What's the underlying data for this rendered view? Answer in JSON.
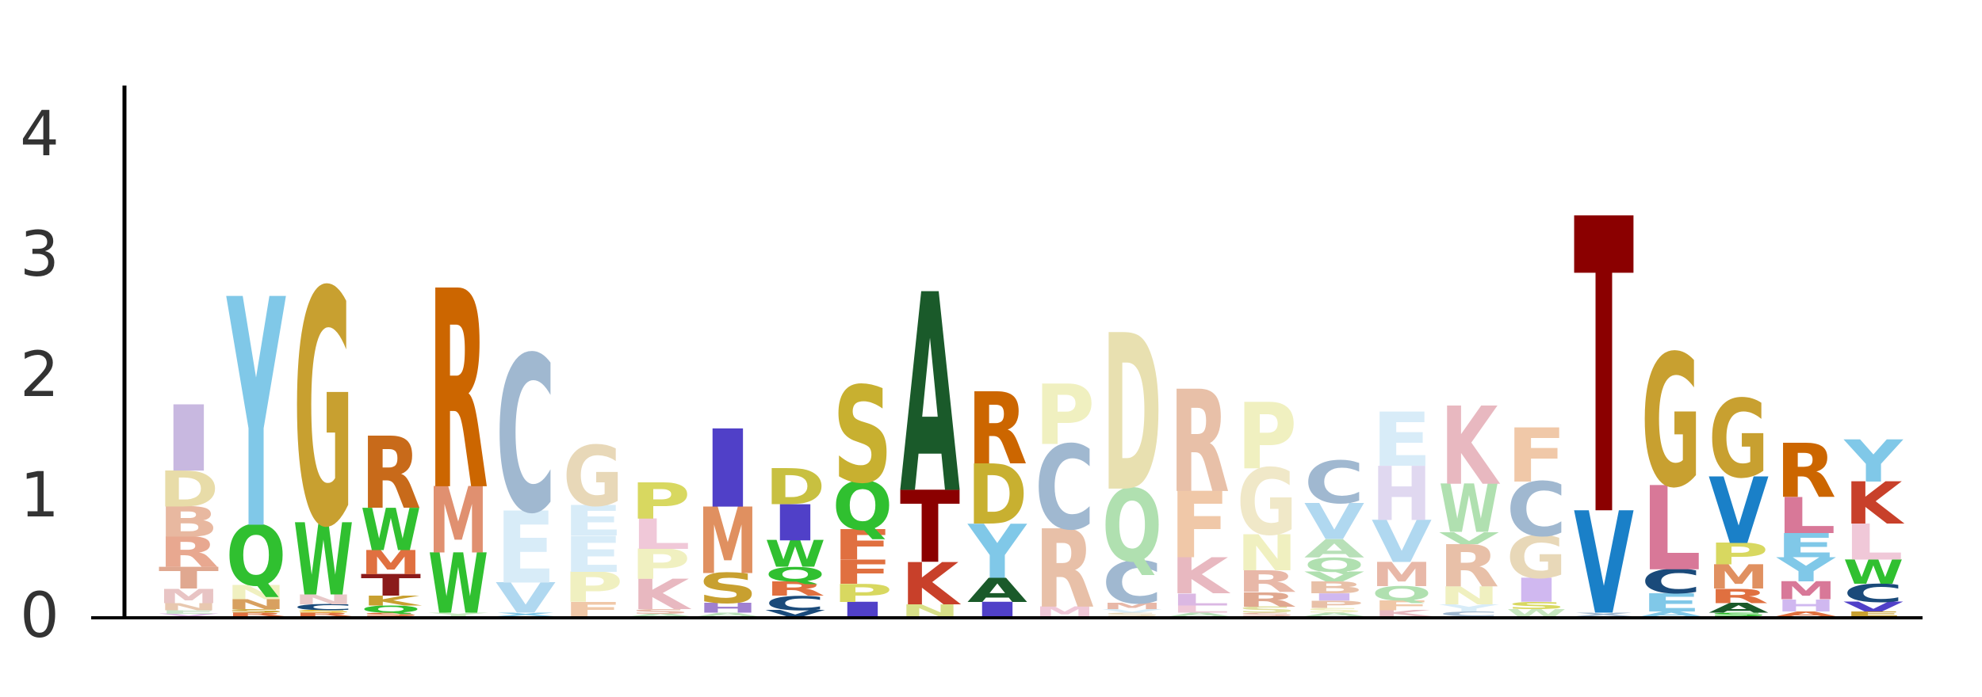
{
  "chart_data": {
    "type": "sequence-logo",
    "ylim": [
      0,
      4.3
    ],
    "yticks": [
      "0",
      "1",
      "2",
      "3",
      "4"
    ],
    "ytick_values": [
      0,
      1,
      2,
      3,
      4
    ],
    "xlabel": "",
    "ylabel": "",
    "title": "",
    "positions": [
      {
        "stack": [
          [
            "V",
            0.02,
            "#dbb8e3"
          ],
          [
            "E",
            0.03,
            "#c8e6c9"
          ],
          [
            "N",
            0.06,
            "#e8c8b0"
          ],
          [
            "M",
            0.12,
            "#e8c4c4"
          ],
          [
            "T",
            0.18,
            "#e0a890"
          ],
          [
            "R",
            0.25,
            "#e8a890"
          ],
          [
            "B",
            0.25,
            "#e8b8a0"
          ],
          [
            "D",
            0.3,
            "#e8dca8"
          ],
          [
            "I",
            0.55,
            "#c8b8e0"
          ]
        ]
      },
      {
        "stack": [
          [
            "R",
            0.03,
            "#e07040"
          ],
          [
            "S",
            0.03,
            "#c8a030"
          ],
          [
            "N",
            0.08,
            "#d8a060"
          ],
          [
            "N",
            0.12,
            "#f0f0c0"
          ],
          [
            "Q",
            0.5,
            "#30c030"
          ],
          [
            "Y",
            1.9,
            "#80c8e8"
          ]
        ]
      },
      {
        "stack": [
          [
            "R",
            0.03,
            "#e07040"
          ],
          [
            "S",
            0.02,
            "#e8c030"
          ],
          [
            "C",
            0.05,
            "#1a4a7a"
          ],
          [
            "N",
            0.08,
            "#e8c8c8"
          ],
          [
            "W",
            0.6,
            "#30c030"
          ],
          [
            "G",
            1.95,
            "#c8a030"
          ]
        ]
      },
      {
        "stack": [
          [
            "S",
            0.03,
            "#e07040"
          ],
          [
            "Q",
            0.06,
            "#30c030"
          ],
          [
            "K",
            0.08,
            "#c8a030"
          ],
          [
            "T",
            0.18,
            "#8b1a1a"
          ],
          [
            "M",
            0.2,
            "#e07040"
          ],
          [
            "W",
            0.35,
            "#30c030"
          ],
          [
            "R",
            0.6,
            "#c86a1a"
          ]
        ]
      },
      {
        "stack": [
          [
            "Y",
            0.03,
            "#c8e8c0"
          ],
          [
            "W",
            0.5,
            "#30c030"
          ],
          [
            "M",
            0.55,
            "#e09070"
          ],
          [
            "R",
            1.65,
            "#cc6600"
          ]
        ]
      },
      {
        "stack": [
          [
            "X",
            0.03,
            "#80c8e8"
          ],
          [
            "V",
            0.25,
            "#b0d8f0"
          ],
          [
            "E",
            0.6,
            "#d8ecf8"
          ],
          [
            "C",
            1.3,
            "#a0b8d0"
          ]
        ]
      },
      {
        "stack": [
          [
            "F",
            0.12,
            "#f0c8a8"
          ],
          [
            "P",
            0.25,
            "#f0f0c0"
          ],
          [
            "E",
            0.3,
            "#d8ecf8"
          ],
          [
            "E",
            0.25,
            "#d8ecf8"
          ],
          [
            "G",
            0.5,
            "#e8d8b8"
          ]
        ]
      },
      {
        "stack": [
          [
            "A",
            0.02,
            "#b8e0b8"
          ],
          [
            "S",
            0.04,
            "#e8b8a8"
          ],
          [
            "K",
            0.25,
            "#e8b8c0"
          ],
          [
            "P",
            0.25,
            "#f0f0c0"
          ],
          [
            "L",
            0.25,
            "#f0c8d8"
          ],
          [
            "P",
            0.3,
            "#d8d860"
          ]
        ]
      },
      {
        "stack": [
          [
            "A",
            0.03,
            "#b8e0b8"
          ],
          [
            "H",
            0.08,
            "#a080d0"
          ],
          [
            "S",
            0.25,
            "#c8a030"
          ],
          [
            "M",
            0.55,
            "#e09060"
          ],
          [
            "I",
            0.65,
            "#5040c8"
          ]
        ]
      },
      {
        "stack": [
          [
            "V",
            0.05,
            "#1a4a7a"
          ],
          [
            "C",
            0.12,
            "#1a4a7a"
          ],
          [
            "R",
            0.12,
            "#e07040"
          ],
          [
            "Q",
            0.12,
            "#30c030"
          ],
          [
            "W",
            0.22,
            "#30c030"
          ],
          [
            "I",
            0.3,
            "#5040c8"
          ],
          [
            "D",
            0.3,
            "#c8c040"
          ]
        ]
      },
      {
        "stack": [
          [
            "I",
            0.12,
            "#5040c8"
          ],
          [
            "P",
            0.15,
            "#d8d860"
          ],
          [
            "F",
            0.2,
            "#e07040"
          ],
          [
            "F",
            0.25,
            "#e07040"
          ],
          [
            "Q",
            0.4,
            "#30c030"
          ],
          [
            "S",
            0.8,
            "#c8b030"
          ]
        ]
      },
      {
        "stack": [
          [
            "N",
            0.1,
            "#d8e088"
          ],
          [
            "K",
            0.35,
            "#c8402a"
          ],
          [
            "T",
            0.6,
            "#8b0000"
          ],
          [
            "A",
            1.65,
            "#1a5a2a"
          ]
        ]
      },
      {
        "stack": [
          [
            "I",
            0.12,
            "#5040c8"
          ],
          [
            "A",
            0.2,
            "#1a5a2a"
          ],
          [
            "Y",
            0.45,
            "#80c8e8"
          ],
          [
            "D",
            0.5,
            "#c8b030"
          ],
          [
            "R",
            0.6,
            "#cc6600"
          ]
        ]
      },
      {
        "stack": [
          [
            "M",
            0.08,
            "#f0c8d8"
          ],
          [
            "R",
            0.65,
            "#e8c0a8"
          ],
          [
            "C",
            0.7,
            "#a0b8d0"
          ],
          [
            "P",
            0.5,
            "#f0f0c0"
          ]
        ]
      },
      {
        "stack": [
          [
            "S",
            0.03,
            "#e8d8b8"
          ],
          [
            "V",
            0.03,
            "#d8ecf8"
          ],
          [
            "M",
            0.05,
            "#e8b8a8"
          ],
          [
            "C",
            0.35,
            "#a0b8d0"
          ],
          [
            "Q",
            0.6,
            "#b0e0b0"
          ],
          [
            "D",
            1.3,
            "#e8e0b0"
          ]
        ]
      },
      {
        "stack": [
          [
            "A",
            0.03,
            "#b8e0b8"
          ],
          [
            "L",
            0.06,
            "#f0c8d8"
          ],
          [
            "L",
            0.1,
            "#dbb8e3"
          ],
          [
            "K",
            0.3,
            "#e8b8c0"
          ],
          [
            "F",
            0.55,
            "#f0c8a8"
          ],
          [
            "R",
            0.85,
            "#e8c0a8"
          ]
        ]
      },
      {
        "stack": [
          [
            "S",
            0.03,
            "#e8b8a8"
          ],
          [
            "S",
            0.05,
            "#e0e0a0"
          ],
          [
            "R",
            0.12,
            "#e0a890"
          ],
          [
            "R",
            0.18,
            "#e8b8a8"
          ],
          [
            "N",
            0.3,
            "#f0f0c0"
          ],
          [
            "G",
            0.55,
            "#f0e8c8"
          ],
          [
            "P",
            0.55,
            "#f0f0c0"
          ]
        ]
      },
      {
        "stack": [
          [
            "A",
            0.03,
            "#b8e0b8"
          ],
          [
            "S",
            0.04,
            "#f0f0c0"
          ],
          [
            "P",
            0.06,
            "#e8c0a8"
          ],
          [
            "I",
            0.06,
            "#d0b8f0"
          ],
          [
            "B",
            0.1,
            "#e8c0a8"
          ],
          [
            "V",
            0.08,
            "#b0e0b0"
          ],
          [
            "Q",
            0.12,
            "#b0e0b0"
          ],
          [
            "A",
            0.15,
            "#b8e0b8"
          ],
          [
            "V",
            0.3,
            "#b0d8f0"
          ],
          [
            "C",
            0.35,
            "#a0b8d0"
          ]
        ]
      },
      {
        "stack": [
          [
            "K",
            0.05,
            "#e8b8c0"
          ],
          [
            "F",
            0.08,
            "#f0c8a8"
          ],
          [
            "Q",
            0.12,
            "#b0e0b0"
          ],
          [
            "M",
            0.2,
            "#e8b8a8"
          ],
          [
            "V",
            0.35,
            "#b0d8f0"
          ],
          [
            "H",
            0.45,
            "#e0d8f0"
          ],
          [
            "E",
            0.45,
            "#d8ecf8"
          ]
        ]
      },
      {
        "stack": [
          [
            "C",
            0.04,
            "#a0b8d0"
          ],
          [
            "Y",
            0.06,
            "#d8ecf8"
          ],
          [
            "N",
            0.15,
            "#f0f0c0"
          ],
          [
            "R",
            0.35,
            "#e8c0a8"
          ],
          [
            "V",
            0.1,
            "#b0e0b0"
          ],
          [
            "W",
            0.4,
            "#b0e0b0"
          ],
          [
            "K",
            0.65,
            "#e8b8c0"
          ]
        ]
      },
      {
        "stack": [
          [
            "W",
            0.06,
            "#c8e8c0"
          ],
          [
            "S",
            0.06,
            "#d8d860"
          ],
          [
            "I",
            0.2,
            "#d0b8f0"
          ],
          [
            "G",
            0.35,
            "#e8d8b8"
          ],
          [
            "C",
            0.45,
            "#a0b8d0"
          ],
          [
            "F",
            0.45,
            "#f0c8a8"
          ]
        ]
      },
      {
        "stack": [
          [
            "X",
            0.03,
            "#a0b8d0"
          ],
          [
            "V",
            0.85,
            "#1a80c8"
          ],
          [
            "T",
            2.45,
            "#8b0000"
          ]
        ]
      },
      {
        "stack": [
          [
            "A",
            0.04,
            "#80c8e8"
          ],
          [
            "E",
            0.15,
            "#80c8e8"
          ],
          [
            "C",
            0.2,
            "#1a4a7a"
          ],
          [
            "L",
            0.7,
            "#d87898"
          ],
          [
            "G",
            1.1,
            "#c8a030"
          ]
        ]
      },
      {
        "stack": [
          [
            "S",
            0.03,
            "#30c030"
          ],
          [
            "A",
            0.08,
            "#1a5a2a"
          ],
          [
            "R",
            0.12,
            "#e07040"
          ],
          [
            "M",
            0.2,
            "#e09060"
          ],
          [
            "P",
            0.18,
            "#d8d860"
          ],
          [
            "V",
            0.55,
            "#1a80c8"
          ],
          [
            "G",
            0.65,
            "#c8a030"
          ]
        ]
      },
      {
        "stack": [
          [
            "A",
            0.04,
            "#e07040"
          ],
          [
            "H",
            0.1,
            "#d0b8f0"
          ],
          [
            "M",
            0.15,
            "#d87898"
          ],
          [
            "Y",
            0.2,
            "#80c8e8"
          ],
          [
            "E",
            0.2,
            "#80c8e8"
          ],
          [
            "L",
            0.3,
            "#d87898"
          ],
          [
            "R",
            0.45,
            "#cc6600"
          ]
        ]
      },
      {
        "stack": [
          [
            "E",
            0.04,
            "#c8a030"
          ],
          [
            "V",
            0.08,
            "#5040c8"
          ],
          [
            "C",
            0.15,
            "#1a4a7a"
          ],
          [
            "W",
            0.2,
            "#30c030"
          ],
          [
            "L",
            0.3,
            "#f0c8d8"
          ],
          [
            "K",
            0.35,
            "#c8402a"
          ],
          [
            "Y",
            0.35,
            "#80c8e8"
          ]
        ]
      }
    ]
  }
}
